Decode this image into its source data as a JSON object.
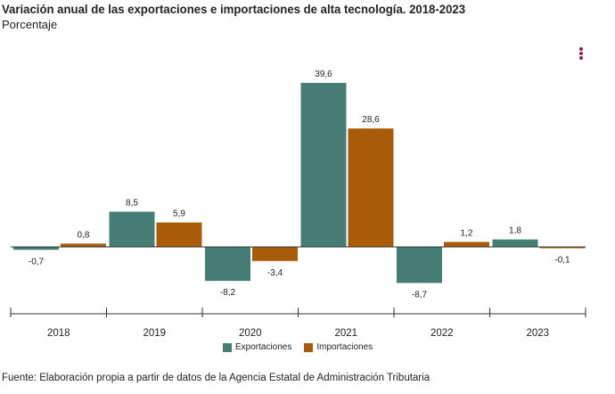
{
  "title": "Variación anual de las exportaciones e importaciones de alta tecnología. 2018-2023",
  "subtitle": "Porcentaje",
  "source": "Fuente: Elaboración propia a partir de datos de la Agencia Estatal de Administración Tributaria",
  "menu_icon": "kebab-menu-icon",
  "chart_data": {
    "type": "bar",
    "title": "Variación anual de las exportaciones e importaciones de alta tecnología. 2018-2023",
    "ylabel": "Porcentaje",
    "categories": [
      "2018",
      "2019",
      "2020",
      "2021",
      "2022",
      "2023"
    ],
    "series": [
      {
        "name": "Exportaciones",
        "color": "#457d74",
        "values": [
          -0.7,
          8.5,
          -8.2,
          39.6,
          -8.7,
          1.8
        ],
        "labels": [
          "-0,7",
          "8,5",
          "-8,2",
          "39,6",
          "-8,7",
          "1,8"
        ]
      },
      {
        "name": "Importaciones",
        "color": "#a85c0a",
        "values": [
          0.8,
          5.9,
          -3.4,
          28.6,
          1.2,
          -0.1
        ],
        "labels": [
          "0,8",
          "5,9",
          "-3,4",
          "28,6",
          "1,2",
          "-0,1"
        ]
      }
    ],
    "ylim": [
      -16,
      42
    ],
    "grid": false,
    "legend": "bottom"
  }
}
